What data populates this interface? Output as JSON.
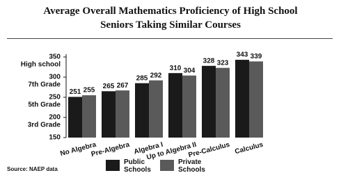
{
  "chart_data": {
    "type": "bar",
    "title": "Average Overall Mathematics Proficiency of High School Seniors Taking Similar Courses",
    "categories": [
      "No Algebra",
      "Pre-Algebra",
      "Algebra I",
      "Up to Algebra II",
      "Pre-Calculus",
      "Calculus"
    ],
    "series": [
      {
        "name": "Public Schools",
        "color": "#1a1a1a",
        "values": [
          251,
          265,
          285,
          310,
          328,
          343
        ]
      },
      {
        "name": "Private Schools",
        "color": "#5a5a5a",
        "values": [
          255,
          267,
          292,
          304,
          323,
          339
        ]
      }
    ],
    "ylim": [
      150,
      350
    ],
    "yticks": [
      150,
      200,
      250,
      300,
      350
    ],
    "y_level_labels": [
      {
        "value": 200,
        "label": "3rd Grade"
      },
      {
        "value": 250,
        "label": "5th Grade"
      },
      {
        "value": 300,
        "label": "7th Grade"
      },
      {
        "value": 350,
        "label": "High school"
      }
    ],
    "source": "Source: NAEP data"
  }
}
